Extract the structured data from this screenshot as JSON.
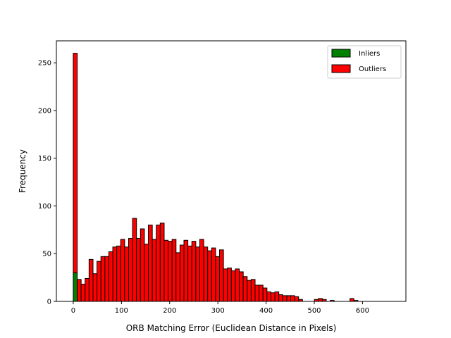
{
  "chart_data": {
    "type": "bar",
    "subtype": "stacked-histogram",
    "title": "",
    "xlabel": "ORB Matching Error (Euclidean Distance in Pixels)",
    "ylabel": "Frequency",
    "xlim": [
      -35,
      690
    ],
    "ylim": [
      0,
      273
    ],
    "xticks": [
      0,
      100,
      200,
      300,
      400,
      500,
      600
    ],
    "yticks": [
      0,
      50,
      100,
      150,
      200,
      250
    ],
    "grid": false,
    "legend": {
      "position": "top-right"
    },
    "bins": {
      "start": 0,
      "width": 8.2,
      "count": 80
    },
    "series": [
      {
        "name": "Inliers",
        "color": "#008000",
        "values": [
          30,
          0,
          0,
          0,
          0,
          0,
          0,
          0,
          0,
          0,
          0,
          0,
          0,
          0,
          0,
          0,
          0,
          0,
          0,
          0,
          0,
          0,
          0,
          0,
          0,
          0,
          0,
          0,
          0,
          0,
          0,
          0,
          0,
          0,
          0,
          0,
          0,
          0,
          0,
          0,
          0,
          0,
          0,
          0,
          0,
          0,
          0,
          0,
          0,
          0,
          0,
          0,
          0,
          0,
          0,
          0,
          0,
          0,
          0,
          0,
          0,
          0,
          0,
          0,
          0,
          0,
          0,
          0,
          0,
          0,
          0,
          0,
          0,
          0,
          0,
          0,
          0,
          0,
          0,
          0
        ]
      },
      {
        "name": "Outliers",
        "color": "#ff0000",
        "values": [
          230,
          23,
          18,
          24,
          44,
          29,
          42,
          47,
          47,
          52,
          57,
          58,
          65,
          57,
          66,
          87,
          66,
          76,
          60,
          80,
          65,
          80,
          82,
          64,
          63,
          65,
          51,
          59,
          64,
          58,
          63,
          57,
          65,
          57,
          53,
          56,
          47,
          54,
          34,
          35,
          32,
          34,
          31,
          26,
          22,
          23,
          17,
          17,
          14,
          10,
          9,
          10,
          7,
          6,
          6,
          6,
          5,
          2,
          0,
          0,
          0,
          2,
          3,
          2,
          0,
          1,
          0,
          0,
          0,
          0,
          3,
          1,
          0,
          0,
          0,
          0,
          0,
          0,
          0,
          0
        ]
      }
    ]
  }
}
